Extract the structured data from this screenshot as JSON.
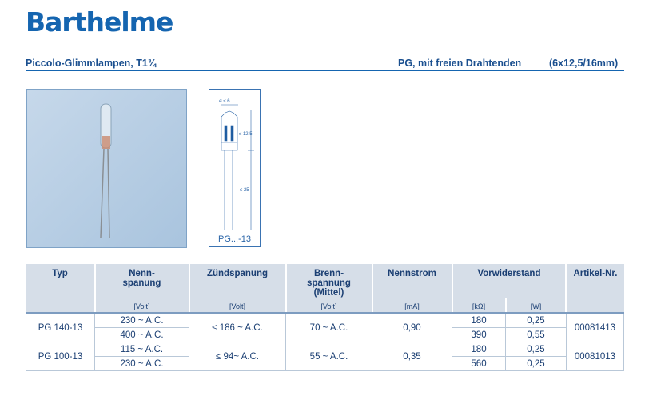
{
  "logo": "Barthelme",
  "header": {
    "left": "Piccolo-Glimmlampen, T1¾",
    "center": "PG, mit freien Drahtenden",
    "right": "(6x12,5/16mm)"
  },
  "drawing": {
    "diameter": "ø ≤ 6",
    "bulb_length": "≤ 12,5",
    "lead_length": "≤ 25",
    "caption": "PG...-13"
  },
  "table": {
    "headers": {
      "typ": "Typ",
      "nenn": "Nenn-\nspanung",
      "zuend": "Zündspanung",
      "brenn": "Brenn-\nspannung\n(Mittel)",
      "strom": "Nennstrom",
      "vorw": "Vorwiderstand",
      "artikel": "Artikel-Nr."
    },
    "units": {
      "nenn": "[Volt]",
      "zuend": "[Volt]",
      "brenn": "[Volt]",
      "strom": "[mA]",
      "ohm": "[kΩ]",
      "watt": "[W]"
    },
    "rows": [
      {
        "typ": "PG 140-13",
        "nenn": [
          "230 ~ A.C.",
          "400 ~ A.C."
        ],
        "zuend": "≤ 186 ~ A.C.",
        "brenn": "70 ~ A.C.",
        "strom": "0,90",
        "ohm": [
          "180",
          "390"
        ],
        "watt": [
          "0,25",
          "0,55"
        ],
        "artikel": "00081413"
      },
      {
        "typ": "PG 100-13",
        "nenn": [
          "115 ~ A.C.",
          "230 ~ A.C."
        ],
        "zuend": "≤ 94~ A.C.",
        "brenn": "55 ~ A.C.",
        "strom": "0,35",
        "ohm": [
          "180",
          "560"
        ],
        "watt": [
          "0,25",
          "0,25"
        ],
        "artikel": "00081013"
      }
    ]
  }
}
